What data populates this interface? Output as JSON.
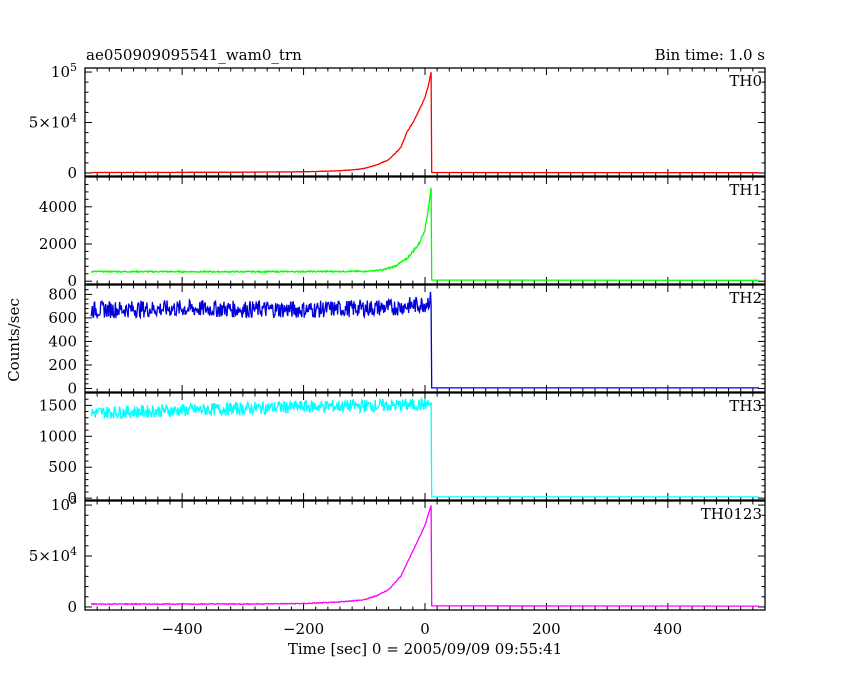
{
  "header": {
    "title": "ae050909095541_wam0_trn",
    "bin_time": "Bin time: 1.0 s"
  },
  "chart_data": {
    "type": "line",
    "xlabel": "Time [sec] 0 = 2005/09/09 09:55:41",
    "ylabel": "Counts/sec",
    "xlim": [
      -560,
      560
    ],
    "x_ticks": [
      -400,
      -200,
      0,
      200,
      400
    ],
    "x_tick_labels": [
      "−400",
      "−200",
      "0",
      "200",
      "400"
    ],
    "panels": [
      {
        "name": "TH0",
        "color": "#ff0000",
        "ylim": [
          -3000,
          104000
        ],
        "y_ticks": [
          0,
          50000,
          100000
        ],
        "y_tick_labels": [
          "0",
          "5×10^4",
          "10^5"
        ],
        "series": [
          {
            "x": -550,
            "y": 500
          },
          {
            "x": -400,
            "y": 600
          },
          {
            "x": -300,
            "y": 800
          },
          {
            "x": -200,
            "y": 1200
          },
          {
            "x": -150,
            "y": 2000
          },
          {
            "x": -120,
            "y": 3000
          },
          {
            "x": -100,
            "y": 4500
          },
          {
            "x": -80,
            "y": 8000
          },
          {
            "x": -60,
            "y": 13000
          },
          {
            "x": -40,
            "y": 25000
          },
          {
            "x": -30,
            "y": 40000
          },
          {
            "x": -20,
            "y": 50000
          },
          {
            "x": -10,
            "y": 62000
          },
          {
            "x": 0,
            "y": 75000
          },
          {
            "x": 5,
            "y": 85000
          },
          {
            "x": 10,
            "y": 100000
          },
          {
            "x": 11,
            "y": 500
          },
          {
            "x": 550,
            "y": 300
          }
        ]
      },
      {
        "name": "TH1",
        "color": "#00ff00",
        "ylim": [
          -150,
          5600
        ],
        "y_ticks": [
          0,
          2000,
          4000
        ],
        "y_tick_labels": [
          "0",
          "2000",
          "4000"
        ],
        "series": [
          {
            "x": -550,
            "y": 520
          },
          {
            "x": -300,
            "y": 510
          },
          {
            "x": -100,
            "y": 530
          },
          {
            "x": -70,
            "y": 600
          },
          {
            "x": -50,
            "y": 800
          },
          {
            "x": -30,
            "y": 1200
          },
          {
            "x": -10,
            "y": 2000
          },
          {
            "x": 0,
            "y": 2800
          },
          {
            "x": 5,
            "y": 3800
          },
          {
            "x": 10,
            "y": 5000
          },
          {
            "x": 11,
            "y": 60
          },
          {
            "x": 550,
            "y": 50
          }
        ]
      },
      {
        "name": "TH2",
        "color": "#0000dd",
        "ylim": [
          -30,
          880
        ],
        "y_ticks": [
          0,
          200,
          400,
          600,
          800
        ],
        "y_tick_labels": [
          "0",
          "200",
          "400",
          "600",
          "800"
        ],
        "series": [
          {
            "x": -550,
            "y": 670
          },
          {
            "x": -400,
            "y": 680
          },
          {
            "x": -200,
            "y": 670
          },
          {
            "x": -50,
            "y": 690
          },
          {
            "x": 0,
            "y": 720
          },
          {
            "x": 10,
            "y": 760
          },
          {
            "x": 11,
            "y": 5
          },
          {
            "x": 550,
            "y": 5
          }
        ]
      },
      {
        "name": "TH3",
        "color": "#00ffff",
        "ylim": [
          -30,
          1700
        ],
        "y_ticks": [
          0,
          500,
          1000,
          1500
        ],
        "y_tick_labels": [
          "0",
          "500",
          "1000",
          "1500"
        ],
        "series": [
          {
            "x": -550,
            "y": 1380
          },
          {
            "x": -400,
            "y": 1420
          },
          {
            "x": -200,
            "y": 1480
          },
          {
            "x": -50,
            "y": 1500
          },
          {
            "x": 10,
            "y": 1520
          },
          {
            "x": 11,
            "y": 20
          },
          {
            "x": 550,
            "y": 20
          }
        ]
      },
      {
        "name": "TH0123",
        "color": "#ff00ff",
        "ylim": [
          -3000,
          104000
        ],
        "y_ticks": [
          0,
          50000,
          100000
        ],
        "y_tick_labels": [
          "0",
          "5×10^4",
          "10^5"
        ],
        "series": [
          {
            "x": -550,
            "y": 2800
          },
          {
            "x": -300,
            "y": 2900
          },
          {
            "x": -200,
            "y": 3300
          },
          {
            "x": -150,
            "y": 4500
          },
          {
            "x": -100,
            "y": 7000
          },
          {
            "x": -80,
            "y": 11000
          },
          {
            "x": -60,
            "y": 17000
          },
          {
            "x": -40,
            "y": 30000
          },
          {
            "x": -20,
            "y": 55000
          },
          {
            "x": 0,
            "y": 80000
          },
          {
            "x": 10,
            "y": 100000
          },
          {
            "x": 11,
            "y": 1000
          },
          {
            "x": 550,
            "y": 800
          }
        ]
      }
    ]
  }
}
